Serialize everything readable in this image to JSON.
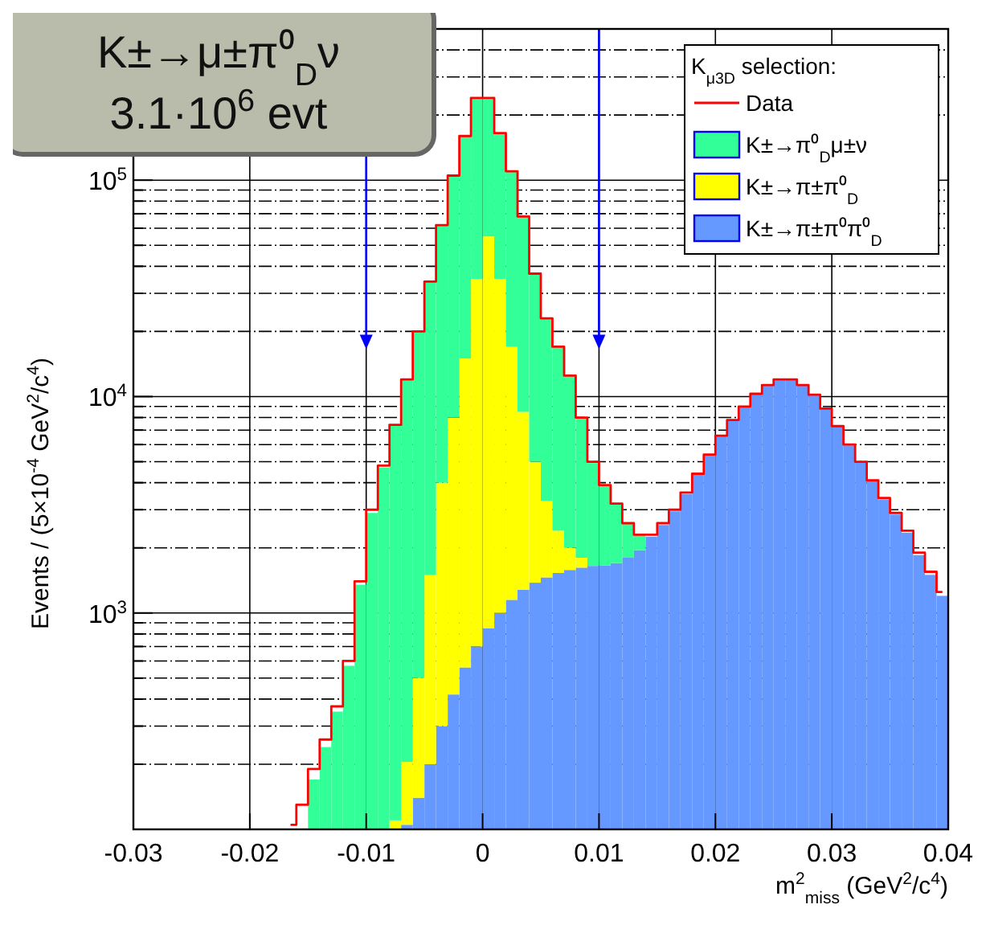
{
  "chart_data": {
    "type": "bar",
    "xlabel": "m$^{2}$$_{miss}$ (GeV$^{2}$/c$^{4}$)",
    "ylabel": "Events / (5×10$^{-4}$ GeV$^{2}$/c$^{4}$)",
    "legend_title": "K$_{μ3D}$ selection:",
    "annotations": [
      "K±→μ±π⁰$_{D}$ν",
      "3.1·10$^{6}$ evt"
    ],
    "x": [
      -0.0165,
      -0.0155,
      -0.0145,
      -0.0135,
      -0.0125,
      -0.0115,
      -0.0105,
      -0.0095,
      -0.0085,
      -0.0075,
      -0.0065,
      -0.0055,
      -0.0045,
      -0.0035,
      -0.0025,
      -0.0015,
      -0.0005,
      0.0005,
      0.0015,
      0.0025,
      0.0035,
      0.0045,
      0.0055,
      0.0065,
      0.0075,
      0.0085,
      0.0095,
      0.0105,
      0.0115,
      0.0125,
      0.0135,
      0.0145,
      0.0155,
      0.0165,
      0.0175,
      0.0185,
      0.0195,
      0.0205,
      0.0215,
      0.0225,
      0.0235,
      0.0245,
      0.0255,
      0.0265,
      0.0275,
      0.0285,
      0.0295,
      0.0305,
      0.0315,
      0.0325,
      0.0335,
      0.0345,
      0.0355,
      0.0365,
      0.0375,
      0.0385,
      0.0395
    ],
    "stacked": true,
    "series": [
      {
        "name": "K±→π±π⁰π⁰$_{D}$",
        "color": "#6699ff",
        "values": [
          null,
          null,
          null,
          null,
          null,
          null,
          null,
          null,
          null,
          null,
          105,
          140,
          200,
          300,
          420,
          560,
          700,
          850,
          1000,
          1150,
          1280,
          1380,
          1460,
          1530,
          1580,
          1620,
          1650,
          1660,
          1700,
          1800,
          1950,
          2250,
          2550,
          2950,
          3550,
          4350,
          5350,
          6550,
          7750,
          8950,
          10250,
          11250,
          11950,
          11950,
          11250,
          10150,
          8750,
          7250,
          5950,
          4950,
          4050,
          3350,
          2850,
          2350,
          1850,
          1500,
          1200
        ]
      },
      {
        "name": "K±→π±π⁰$_{D}$",
        "color": "#ffff00",
        "values": [
          null,
          null,
          null,
          null,
          null,
          null,
          null,
          null,
          null,
          110,
          100,
          360,
          1300,
          3700,
          7580,
          14440,
          34300,
          54150,
          34000,
          15850,
          7220,
          3620,
          1840,
          870,
          420,
          180,
          null,
          null,
          null,
          null,
          null,
          null,
          null,
          null,
          null,
          null,
          null,
          null,
          null,
          null,
          null,
          null,
          null,
          null,
          null,
          null,
          null,
          null,
          null,
          null,
          null,
          null,
          null,
          null,
          null,
          null,
          null
        ]
      },
      {
        "name": "K±→π⁰$_{D}$μ±ν",
        "color": "#33ff99",
        "values": [
          null,
          null,
          170,
          240,
          350,
          570,
          1350,
          2900,
          4700,
          7290,
          11800,
          19500,
          32500,
          58000,
          97000,
          145000,
          205000,
          185000,
          130000,
          93000,
          59500,
          32000,
          19700,
          14600,
          10500,
          6200,
          3280,
          2220,
          1490,
          795,
          350,
          null,
          null,
          null,
          null,
          null,
          null,
          null,
          null,
          null,
          null,
          null,
          null,
          null,
          null,
          null,
          null,
          null,
          null,
          null,
          null,
          null,
          null,
          null,
          null,
          null,
          null
        ]
      },
      {
        "name": "Data",
        "type": "step",
        "color": "#ff0000",
        "values": [
          105,
          130,
          190,
          260,
          370,
          600,
          1400,
          3000,
          4800,
          7400,
          12000,
          20000,
          34000,
          62000,
          105000,
          160000,
          240000,
          240000,
          165000,
          110000,
          68000,
          37000,
          23000,
          17000,
          12500,
          8000,
          5000,
          3900,
          3200,
          2600,
          2300,
          2300,
          2600,
          3000,
          3600,
          4400,
          5400,
          6600,
          7800,
          9000,
          10300,
          11300,
          12000,
          12000,
          11300,
          10200,
          8800,
          7300,
          6000,
          5000,
          4100,
          3400,
          2900,
          2400,
          1900,
          1550,
          1250
        ]
      }
    ],
    "xlim": [
      -0.03,
      0.04
    ],
    "xticks": [
      -0.03,
      -0.02,
      -0.01,
      0,
      0.01,
      0.02,
      0.03,
      0.04
    ],
    "log": true,
    "ylim": [
      100,
      500000
    ],
    "yticks": [
      {
        "value": 200,
        "label": null
      },
      {
        "value": 300,
        "label": null
      },
      {
        "value": 400,
        "label": null
      },
      {
        "value": 500,
        "label": null
      },
      {
        "value": 600,
        "label": null
      },
      {
        "value": 700,
        "label": null
      },
      {
        "value": 800,
        "label": null
      },
      {
        "value": 900,
        "label": null
      },
      {
        "value": 1000,
        "label": "10$^{3}$"
      },
      {
        "value": 2000,
        "label": null
      },
      {
        "value": 3000,
        "label": null
      },
      {
        "value": 4000,
        "label": null
      },
      {
        "value": 5000,
        "label": null
      },
      {
        "value": 6000,
        "label": null
      },
      {
        "value": 7000,
        "label": null
      },
      {
        "value": 8000,
        "label": null
      },
      {
        "value": 9000,
        "label": null
      },
      {
        "value": 10000,
        "label": "10$^{4}$"
      },
      {
        "value": 20000,
        "label": null
      },
      {
        "value": 30000,
        "label": null
      },
      {
        "value": 40000,
        "label": null
      },
      {
        "value": 50000,
        "label": null
      },
      {
        "value": 60000,
        "label": null
      },
      {
        "value": 70000,
        "label": null
      },
      {
        "value": 80000,
        "label": null
      },
      {
        "value": 90000,
        "label": null
      },
      {
        "value": 100000,
        "label": "10$^{5}$"
      },
      {
        "value": 200000,
        "label": null
      },
      {
        "value": 300000,
        "label": null
      },
      {
        "value": 400000,
        "label": null
      }
    ],
    "ref_lines": [
      {
        "axis": "x",
        "value": -0.01,
        "color": "#0000ff"
      },
      {
        "axis": "x",
        "value": 0.01,
        "color": "#0000ff"
      }
    ],
    "grid": true,
    "legend": "top right"
  }
}
